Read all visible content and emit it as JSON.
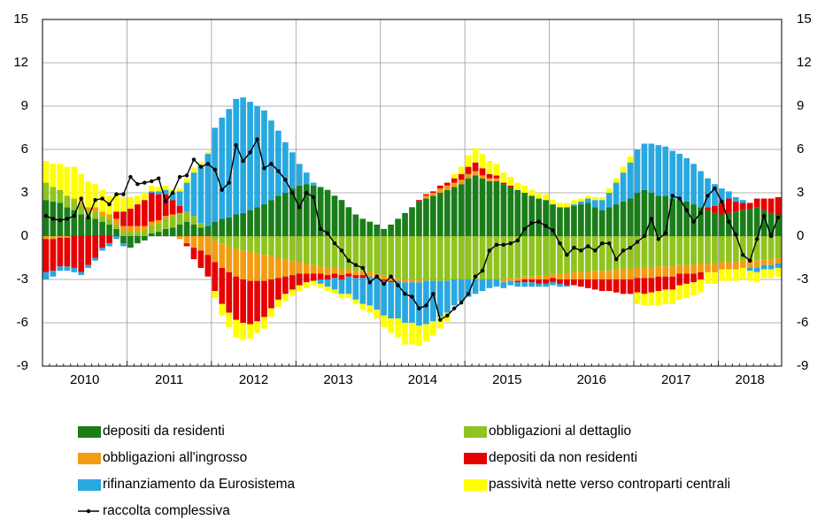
{
  "chart_data": {
    "type": "stacked-bar",
    "categories": [
      null,
      null,
      null,
      null,
      null,
      "2010",
      null,
      null,
      null,
      null,
      null,
      null,
      null,
      null,
      null,
      null,
      null,
      "2011",
      null,
      null,
      null,
      null,
      null,
      null,
      null,
      null,
      null,
      null,
      null,
      "2012",
      null,
      null,
      null,
      null,
      null,
      null,
      null,
      null,
      null,
      null,
      null,
      "2013",
      null,
      null,
      null,
      null,
      null,
      null,
      null,
      null,
      null,
      null,
      null,
      "2014",
      null,
      null,
      null,
      null,
      null,
      null,
      null,
      null,
      null,
      null,
      null,
      "2015",
      null,
      null,
      null,
      null,
      null,
      null,
      null,
      null,
      null,
      null,
      null,
      "2016",
      null,
      null,
      null,
      null,
      null,
      null,
      null,
      null,
      null,
      null,
      null,
      "2017",
      null,
      null,
      null,
      null,
      null,
      null,
      null,
      null,
      null,
      null,
      null,
      "2018",
      null,
      null,
      null
    ],
    "ylim": [
      -9,
      15
    ],
    "yticks": [
      -9,
      -6,
      -3,
      0,
      3,
      6,
      9,
      12,
      15
    ],
    "grid": true,
    "series": [
      {
        "name": "depositi da residenti",
        "color": "#1a7d1a",
        "values": [
          2.5,
          2.4,
          2.3,
          2.0,
          1.8,
          1.5,
          1.3,
          1.2,
          1.0,
          0.8,
          0.5,
          -0.5,
          -0.8,
          -0.5,
          -0.3,
          0.2,
          0.3,
          0.5,
          0.6,
          0.8,
          1.0,
          0.8,
          0.6,
          0.7,
          1.0,
          1.2,
          1.3,
          1.5,
          1.6,
          1.8,
          2.0,
          2.2,
          2.5,
          2.8,
          3.0,
          3.3,
          3.5,
          3.6,
          3.5,
          3.4,
          3.2,
          2.8,
          2.5,
          2.0,
          1.5,
          1.2,
          1.0,
          0.8,
          0.5,
          0.8,
          1.2,
          1.6,
          2.0,
          2.4,
          2.6,
          2.8,
          3.0,
          3.2,
          3.4,
          3.6,
          4.0,
          4.2,
          4.0,
          3.8,
          3.8,
          3.6,
          3.4,
          3.2,
          3.0,
          2.8,
          2.6,
          2.5,
          2.2,
          2.0,
          2.0,
          2.1,
          2.2,
          2.3,
          2.0,
          1.8,
          2.0,
          2.2,
          2.4,
          2.6,
          3.0,
          3.2,
          3.0,
          2.8,
          2.8,
          2.6,
          2.5,
          2.4,
          2.2,
          2.0,
          1.8,
          1.6,
          1.5,
          1.6,
          1.7,
          1.8,
          1.9,
          2.0,
          1.8,
          1.6,
          1.5
        ]
      },
      {
        "name": "obbligazioni al dettaglio",
        "color": "#8fc31f",
        "values": [
          1.2,
          1.0,
          0.9,
          0.8,
          0.7,
          0.6,
          0.5,
          0.5,
          0.4,
          0.4,
          0.3,
          0.3,
          0.3,
          0.3,
          0.4,
          0.5,
          0.6,
          0.7,
          0.8,
          0.8,
          0.7,
          0.6,
          0.3,
          0.0,
          -0.3,
          -0.5,
          -0.7,
          -0.9,
          -1.0,
          -1.1,
          -1.2,
          -1.3,
          -1.4,
          -1.5,
          -1.6,
          -1.7,
          -1.8,
          -1.9,
          -2.0,
          -2.1,
          -2.2,
          -2.2,
          -2.3,
          -2.3,
          -2.4,
          -2.4,
          -2.5,
          -2.6,
          -2.7,
          -2.8,
          -2.9,
          -3.0,
          -3.0,
          -3.0,
          -3.1,
          -3.1,
          -3.1,
          -3.1,
          -3.0,
          -3.0,
          -3.0,
          -3.0,
          -3.0,
          -3.0,
          -3.0,
          -3.0,
          -2.9,
          -2.9,
          -2.8,
          -2.8,
          -2.7,
          -2.7,
          -2.6,
          -2.6,
          -2.6,
          -2.5,
          -2.5,
          -2.5,
          -2.4,
          -2.4,
          -2.4,
          -2.3,
          -2.3,
          -2.3,
          -2.2,
          -2.2,
          -2.2,
          -2.1,
          -2.1,
          -2.1,
          -2.0,
          -2.0,
          -2.0,
          -1.9,
          -1.9,
          -1.9,
          -1.8,
          -1.8,
          -1.8,
          -1.7,
          -1.7,
          -1.7,
          -1.6,
          -1.6,
          -1.5
        ]
      },
      {
        "name": "obbligazioni all'ingrosso",
        "color": "#f39c12",
        "values": [
          -0.2,
          -0.2,
          -0.1,
          -0.1,
          0.1,
          0.2,
          0.2,
          0.3,
          0.3,
          0.3,
          0.4,
          0.4,
          0.4,
          0.4,
          0.3,
          0.3,
          0.2,
          0.2,
          0.1,
          -0.2,
          -0.5,
          -0.8,
          -1.0,
          -1.3,
          -1.5,
          -1.7,
          -1.8,
          -1.9,
          -2.0,
          -2.0,
          -1.9,
          -1.8,
          -1.6,
          -1.4,
          -1.2,
          -1.0,
          -0.8,
          -0.7,
          -0.6,
          -0.5,
          -0.5,
          -0.4,
          -0.4,
          -0.3,
          -0.3,
          -0.3,
          -0.3,
          -0.3,
          -0.3,
          -0.3,
          -0.2,
          -0.2,
          -0.2,
          -0.2,
          0.2,
          0.2,
          0.3,
          0.3,
          0.3,
          0.3,
          0.3,
          0.3,
          0.2,
          0.2,
          0.2,
          -0.2,
          -0.2,
          -0.2,
          -0.2,
          -0.2,
          -0.3,
          -0.3,
          -0.3,
          -0.4,
          -0.4,
          -0.5,
          -0.5,
          -0.5,
          -0.6,
          -0.6,
          -0.6,
          -0.7,
          -0.7,
          -0.7,
          -0.7,
          -0.7,
          -0.7,
          -0.7,
          -0.7,
          -0.7,
          -0.6,
          -0.6,
          -0.6,
          -0.6,
          -0.6,
          -0.6,
          -0.5,
          -0.5,
          -0.5,
          -0.5,
          -0.5,
          -0.5,
          -0.4,
          -0.4,
          -0.4
        ]
      },
      {
        "name": "depositi da non residenti",
        "color": "#e60000",
        "values": [
          -2.3,
          -2.2,
          -2.0,
          -2.0,
          -2.2,
          -2.5,
          -2.0,
          -1.5,
          -0.8,
          -0.5,
          0.5,
          1.0,
          1.2,
          1.5,
          1.8,
          2.0,
          1.8,
          1.5,
          1.0,
          0.5,
          -0.2,
          -0.8,
          -1.2,
          -1.5,
          -2.0,
          -2.5,
          -2.8,
          -3.0,
          -3.0,
          -3.0,
          -2.8,
          -2.5,
          -2.0,
          -1.5,
          -1.2,
          -1.0,
          -0.8,
          -0.6,
          -0.5,
          -0.4,
          -0.3,
          -0.3,
          -0.3,
          -0.2,
          -0.2,
          -0.2,
          0.0,
          0.0,
          -0.1,
          -0.1,
          0.0,
          0.0,
          0.0,
          0.1,
          0.1,
          0.1,
          0.2,
          0.2,
          0.3,
          0.4,
          0.5,
          0.6,
          0.5,
          0.3,
          0.2,
          0.1,
          0.1,
          -0.1,
          -0.2,
          -0.2,
          -0.3,
          -0.3,
          -0.3,
          -0.3,
          -0.4,
          -0.4,
          -0.5,
          -0.6,
          -0.7,
          -0.8,
          -0.8,
          -0.9,
          -1.0,
          -1.0,
          -1.0,
          -1.1,
          -1.0,
          -1.0,
          -0.9,
          -0.9,
          -0.8,
          -0.7,
          -0.6,
          -0.5,
          0.2,
          0.5,
          0.8,
          1.0,
          0.7,
          0.5,
          0.4,
          0.6,
          0.8,
          1.0,
          1.2
        ]
      },
      {
        "name": "rifinanziamento da Eurosistema",
        "color": "#29a8e0",
        "values": [
          -0.5,
          -0.4,
          -0.3,
          -0.3,
          -0.3,
          -0.2,
          -0.2,
          -0.2,
          -0.2,
          -0.2,
          -0.2,
          -0.2,
          0.0,
          0.0,
          0.0,
          0.1,
          0.2,
          0.3,
          0.5,
          1.0,
          2.0,
          3.0,
          4.0,
          5.0,
          6.5,
          7.0,
          7.5,
          8.0,
          8.0,
          7.5,
          7.0,
          6.5,
          5.5,
          4.5,
          3.5,
          2.5,
          1.5,
          0.8,
          0.2,
          -0.3,
          -0.5,
          -0.8,
          -1.0,
          -1.2,
          -1.5,
          -1.8,
          -2.0,
          -2.2,
          -2.4,
          -2.5,
          -2.6,
          -2.8,
          -2.8,
          -3.0,
          -3.0,
          -2.8,
          -2.5,
          -2.2,
          -1.8,
          -1.5,
          -1.2,
          -1.0,
          -0.8,
          -0.6,
          -0.5,
          -0.4,
          -0.3,
          -0.3,
          -0.3,
          -0.3,
          -0.2,
          -0.2,
          -0.2,
          -0.2,
          -0.1,
          0.1,
          0.2,
          0.3,
          0.5,
          0.7,
          1.0,
          1.5,
          2.0,
          2.5,
          3.0,
          3.2,
          3.4,
          3.5,
          3.4,
          3.3,
          3.2,
          3.0,
          2.8,
          2.5,
          2.0,
          1.5,
          1.0,
          0.5,
          0.3,
          0.2,
          -0.2,
          -0.3,
          -0.3,
          -0.3,
          -0.3
        ]
      },
      {
        "name": "passività nette verso controparti centrali",
        "color": "#ffff00",
        "values": [
          1.5,
          1.6,
          1.8,
          2.0,
          2.2,
          2.0,
          1.8,
          1.6,
          1.5,
          1.3,
          1.2,
          1.0,
          0.8,
          0.6,
          0.5,
          0.4,
          0.3,
          0.3,
          0.2,
          0.2,
          0.3,
          0.3,
          0.2,
          0.1,
          -0.5,
          -0.8,
          -1.0,
          -1.2,
          -1.2,
          -1.0,
          -0.8,
          -0.8,
          -0.6,
          -0.5,
          -0.5,
          -0.4,
          -0.4,
          -0.4,
          -0.3,
          -0.3,
          -0.3,
          -0.3,
          -0.3,
          -0.3,
          -0.3,
          -0.4,
          -0.5,
          -0.6,
          -0.8,
          -1.0,
          -1.3,
          -1.5,
          -1.5,
          -1.4,
          -1.2,
          -1.0,
          -0.8,
          -0.6,
          0.3,
          0.5,
          0.8,
          1.0,
          1.0,
          0.9,
          0.8,
          0.7,
          0.6,
          0.5,
          0.5,
          0.4,
          0.4,
          0.4,
          0.3,
          0.3,
          0.3,
          0.3,
          0.2,
          0.2,
          0.2,
          0.2,
          0.3,
          0.3,
          0.4,
          0.4,
          -0.8,
          -0.8,
          -0.9,
          -1.0,
          -1.0,
          -1.0,
          -1.0,
          -1.0,
          -0.9,
          -0.9,
          -0.8,
          -0.8,
          -0.8,
          -0.8,
          -0.8,
          -0.8,
          -0.7,
          -0.7,
          -0.6,
          -0.6,
          -0.6
        ]
      },
      {
        "name": "raccolta complessiva",
        "type": "line",
        "color": "#000000",
        "values": [
          1.4,
          1.2,
          1.1,
          1.2,
          1.4,
          2.6,
          1.3,
          2.5,
          2.6,
          2.2,
          2.9,
          2.9,
          4.1,
          3.6,
          3.7,
          3.8,
          4.0,
          2.4,
          3.0,
          4.1,
          4.2,
          5.3,
          4.8,
          5.0,
          4.6,
          3.2,
          3.7,
          6.3,
          5.2,
          5.8,
          6.7,
          4.7,
          5.0,
          4.5,
          3.9,
          3.0,
          2.0,
          3.0,
          2.7,
          0.5,
          0.2,
          -0.5,
          -1.0,
          -1.7,
          -2.0,
          -2.2,
          -3.2,
          -2.8,
          -3.3,
          -2.8,
          -3.4,
          -4.0,
          -4.2,
          -5.0,
          -4.8,
          -4.0,
          -5.8,
          -5.5,
          -5.0,
          -4.6,
          -4.0,
          -2.8,
          -2.4,
          -1.0,
          -0.6,
          -0.6,
          -0.5,
          -0.3,
          0.5,
          0.9,
          1.0,
          0.7,
          0.4,
          -0.5,
          -1.3,
          -0.8,
          -1.0,
          -0.7,
          -1.0,
          -0.5,
          -0.5,
          -1.6,
          -1.0,
          -0.8,
          -0.4,
          0.0,
          1.2,
          -0.2,
          0.2,
          2.8,
          2.6,
          1.8,
          1.0,
          1.6,
          2.8,
          3.3,
          2.4,
          1.0,
          0.1,
          -1.3,
          -1.7,
          -0.2,
          1.4,
          0.0,
          1.3
        ]
      }
    ]
  }
}
